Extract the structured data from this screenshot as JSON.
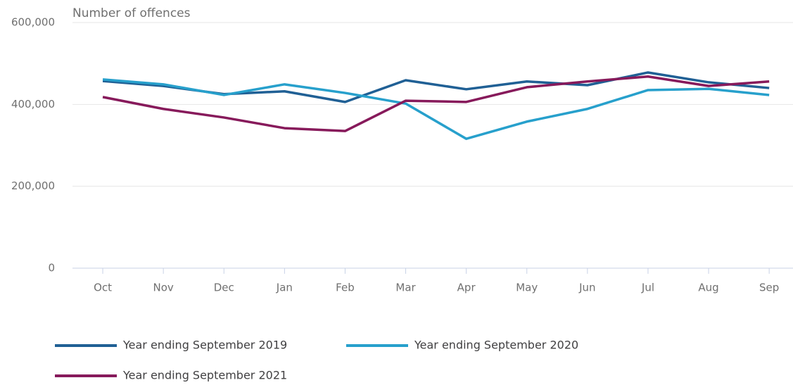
{
  "chart_data": {
    "type": "line",
    "y_label": "Number of offences",
    "categories": [
      "Oct",
      "Nov",
      "Dec",
      "Jan",
      "Feb",
      "Mar",
      "Apr",
      "May",
      "Jun",
      "Jul",
      "Aug",
      "Sep"
    ],
    "series": [
      {
        "name": "Year ending September 2019",
        "color": "#206095",
        "values": [
          457000,
          445000,
          425000,
          432000,
          406000,
          459000,
          437000,
          456000,
          447000,
          478000,
          454000,
          440000
        ]
      },
      {
        "name": "Year ending September 2020",
        "color": "#27a0cc",
        "values": [
          461000,
          449000,
          423000,
          449000,
          428000,
          402000,
          316000,
          358000,
          389000,
          435000,
          438000,
          423000
        ]
      },
      {
        "name": "Year ending September 2021",
        "color": "#871a5b",
        "values": [
          418000,
          389000,
          368000,
          342000,
          335000,
          409000,
          406000,
          442000,
          456000,
          468000,
          445000,
          456000
        ]
      }
    ],
    "ylim": [
      0,
      600000
    ],
    "yticks": [
      0,
      {
        "value": 200000,
        "label": "200,000"
      },
      {
        "value": 400000,
        "label": "400,000"
      },
      {
        "value": 600000,
        "label": "600,000"
      }
    ],
    "grid": true
  }
}
